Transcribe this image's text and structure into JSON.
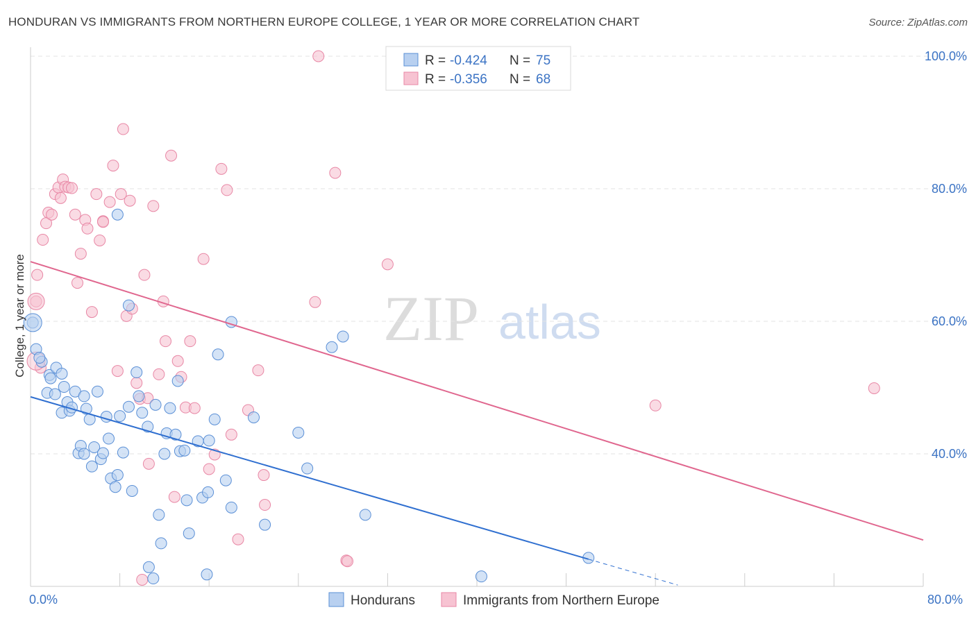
{
  "title": "HONDURAN VS IMMIGRANTS FROM NORTHERN EUROPE COLLEGE, 1 YEAR OR MORE CORRELATION CHART",
  "source": "Source: ZipAtlas.com",
  "watermark": {
    "zip": "ZIP",
    "atlas": "atlas"
  },
  "colors": {
    "blue_fill": "#b8d0f0",
    "blue_stroke": "#5a8fd6",
    "blue_line": "#2f6fd0",
    "pink_fill": "#f7c3d2",
    "pink_stroke": "#e887a5",
    "pink_line": "#e0668e",
    "tick": "#3b73c4",
    "grid": "#e3e3e3"
  },
  "legend": {
    "rows": [
      {
        "r_label": "R =",
        "r_value": "-0.424",
        "n_label": "N =",
        "n_value": "75",
        "color": "blue"
      },
      {
        "r_label": "R =",
        "r_value": "-0.356",
        "n_label": "N =",
        "n_value": "68",
        "color": "pink"
      }
    ]
  },
  "chart_data": {
    "type": "scatter",
    "title": "HONDURAN VS IMMIGRANTS FROM NORTHERN EUROPE COLLEGE, 1 YEAR OR MORE CORRELATION CHART",
    "xlabel": "",
    "ylabel": "College, 1 year or more",
    "xlim": [
      0,
      80
    ],
    "ylim": [
      20,
      102
    ],
    "x_tick_labels": [
      "0.0%",
      "80.0%"
    ],
    "y_ticks": [
      40,
      60,
      80,
      100
    ],
    "y_tick_labels": [
      "40.0%",
      "60.0%",
      "80.0%",
      "100.0%"
    ],
    "grid": true,
    "legend_position": "bottom",
    "series": [
      {
        "name": "Hondurans",
        "color": "#5a8fd6",
        "R": -0.424,
        "N": 75,
        "trend": {
          "x0": 0,
          "y0": 48.6,
          "x1": 50,
          "y1": 24.1,
          "dashed_to": {
            "x": 58,
            "y": 20.2
          }
        },
        "points": [
          [
            0.2,
            59.8
          ],
          [
            0.5,
            55.8
          ],
          [
            1.0,
            53.9
          ],
          [
            0.8,
            54.5
          ],
          [
            1.5,
            49.2
          ],
          [
            1.7,
            51.9
          ],
          [
            1.8,
            51.4
          ],
          [
            2.2,
            49.0
          ],
          [
            2.3,
            53.0
          ],
          [
            2.8,
            46.2
          ],
          [
            2.8,
            52.1
          ],
          [
            3.0,
            50.1
          ],
          [
            3.3,
            47.8
          ],
          [
            3.5,
            46.5
          ],
          [
            3.7,
            47.0
          ],
          [
            4.0,
            49.4
          ],
          [
            4.3,
            40.1
          ],
          [
            4.5,
            41.2
          ],
          [
            4.8,
            48.7
          ],
          [
            5.0,
            46.8
          ],
          [
            5.3,
            45.2
          ],
          [
            5.5,
            38.1
          ],
          [
            5.7,
            41.0
          ],
          [
            6.0,
            49.4
          ],
          [
            6.3,
            39.2
          ],
          [
            6.5,
            40.1
          ],
          [
            6.8,
            45.6
          ],
          [
            7.0,
            42.3
          ],
          [
            7.2,
            36.3
          ],
          [
            7.6,
            35.0
          ],
          [
            7.8,
            36.8
          ],
          [
            8.0,
            45.7
          ],
          [
            8.3,
            40.2
          ],
          [
            8.8,
            47.1
          ],
          [
            9.1,
            34.4
          ],
          [
            9.5,
            52.3
          ],
          [
            9.7,
            48.7
          ],
          [
            10.0,
            46.2
          ],
          [
            10.5,
            44.1
          ],
          [
            11.2,
            47.4
          ],
          [
            11.5,
            30.8
          ],
          [
            11.7,
            26.5
          ],
          [
            12.0,
            40.0
          ],
          [
            12.2,
            43.1
          ],
          [
            12.5,
            46.9
          ],
          [
            13.0,
            42.9
          ],
          [
            13.2,
            51.0
          ],
          [
            13.4,
            40.4
          ],
          [
            13.8,
            40.5
          ],
          [
            14.0,
            33.0
          ],
          [
            14.2,
            28.0
          ],
          [
            15.0,
            41.9
          ],
          [
            15.4,
            33.4
          ],
          [
            15.9,
            34.2
          ],
          [
            16.0,
            42.0
          ],
          [
            16.5,
            45.2
          ],
          [
            16.8,
            55.0
          ],
          [
            17.5,
            36.0
          ],
          [
            18.0,
            31.9
          ],
          [
            18.0,
            59.9
          ],
          [
            20.0,
            45.5
          ],
          [
            21.0,
            29.3
          ],
          [
            24.0,
            43.2
          ],
          [
            24.8,
            37.8
          ],
          [
            27.0,
            56.1
          ],
          [
            28.0,
            57.7
          ],
          [
            30.0,
            30.8
          ],
          [
            7.8,
            76.1
          ],
          [
            8.8,
            62.4
          ],
          [
            10.6,
            22.9
          ],
          [
            15.8,
            21.8
          ],
          [
            40.4,
            21.5
          ],
          [
            50.0,
            24.3
          ],
          [
            11.0,
            21.2
          ],
          [
            4.8,
            40.0
          ]
        ]
      },
      {
        "name": "Immigrants from Northern Europe",
        "color": "#e887a5",
        "R": -0.356,
        "N": 68,
        "trend": {
          "x0": 0,
          "y0": 69.0,
          "x1": 80,
          "y1": 27.0
        },
        "points": [
          [
            0.5,
            63.0
          ],
          [
            0.6,
            67.0
          ],
          [
            0.9,
            53.0
          ],
          [
            1.1,
            72.3
          ],
          [
            1.4,
            74.8
          ],
          [
            1.6,
            76.4
          ],
          [
            1.9,
            76.1
          ],
          [
            2.2,
            79.2
          ],
          [
            2.5,
            80.2
          ],
          [
            2.7,
            78.6
          ],
          [
            2.9,
            81.4
          ],
          [
            3.1,
            80.3
          ],
          [
            3.4,
            80.2
          ],
          [
            3.7,
            80.1
          ],
          [
            4.0,
            76.1
          ],
          [
            4.2,
            65.8
          ],
          [
            4.5,
            70.2
          ],
          [
            4.9,
            75.3
          ],
          [
            5.1,
            74.0
          ],
          [
            5.5,
            61.4
          ],
          [
            5.9,
            79.2
          ],
          [
            6.2,
            72.2
          ],
          [
            6.5,
            75.1
          ],
          [
            7.1,
            78.0
          ],
          [
            7.4,
            83.5
          ],
          [
            7.8,
            52.5
          ],
          [
            8.1,
            79.2
          ],
          [
            8.3,
            89.0
          ],
          [
            8.6,
            60.8
          ],
          [
            8.9,
            78.2
          ],
          [
            9.1,
            61.9
          ],
          [
            9.5,
            50.7
          ],
          [
            9.8,
            48.3
          ],
          [
            10.2,
            67.0
          ],
          [
            10.5,
            48.4
          ],
          [
            10.6,
            38.5
          ],
          [
            11.0,
            77.4
          ],
          [
            11.5,
            52.0
          ],
          [
            11.9,
            63.0
          ],
          [
            12.1,
            57.0
          ],
          [
            12.6,
            85.0
          ],
          [
            12.9,
            33.5
          ],
          [
            13.2,
            54.0
          ],
          [
            13.5,
            51.6
          ],
          [
            13.9,
            47.0
          ],
          [
            14.3,
            57.0
          ],
          [
            14.7,
            46.9
          ],
          [
            15.5,
            69.4
          ],
          [
            16.0,
            37.7
          ],
          [
            16.5,
            39.9
          ],
          [
            17.1,
            83.0
          ],
          [
            17.6,
            79.8
          ],
          [
            18.0,
            42.9
          ],
          [
            18.6,
            27.1
          ],
          [
            19.5,
            46.6
          ],
          [
            20.4,
            52.6
          ],
          [
            20.9,
            36.8
          ],
          [
            21.0,
            32.3
          ],
          [
            25.5,
            62.9
          ],
          [
            25.8,
            100.0
          ],
          [
            27.3,
            82.4
          ],
          [
            28.3,
            23.9
          ],
          [
            28.4,
            23.8
          ],
          [
            32.0,
            68.6
          ],
          [
            56.0,
            47.3
          ],
          [
            75.6,
            49.9
          ],
          [
            10.0,
            21.0
          ],
          [
            6.5,
            75.0
          ]
        ]
      }
    ]
  }
}
